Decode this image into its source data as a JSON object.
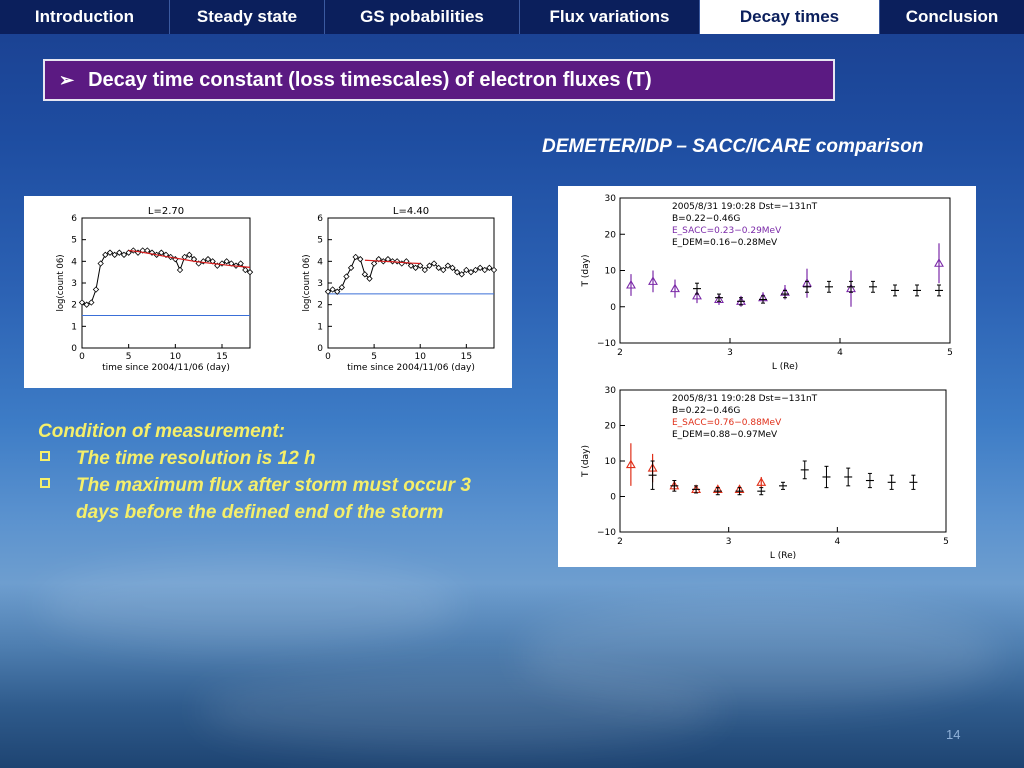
{
  "nav": {
    "tabs": [
      {
        "label": "Introduction"
      },
      {
        "label": "Steady state"
      },
      {
        "label": "GS pobabilities"
      },
      {
        "label": "Flux variations"
      },
      {
        "label": "Decay times"
      },
      {
        "label": "Conclusion"
      }
    ],
    "active_tab": "Decay times"
  },
  "slide": {
    "title": "Decay time constant (loss timescales)  of electron fluxes (T)",
    "subtitle": "DEMETER/IDP – SACC/ICARE comparison",
    "conditions_heading": "Condition of measurement:",
    "conditions": [
      "The time resolution is 12 h",
      "The maximum flux after storm must occur 3 days before the defined end of the storm"
    ],
    "page_number": "14"
  },
  "colors": {
    "nav_bg": "#0b1f5c",
    "title_bg": "#5b1a82",
    "conditions_text": "#f5ef6a",
    "sacc_low": "#7b2aa8",
    "sacc_high": "#e0301a",
    "dem": "#000000",
    "fit_line": "#d81c1c",
    "baseline": "#3a6fd8"
  },
  "chart_data": [
    {
      "type": "line",
      "title": "L=2.70",
      "xlabel": "time since 2004/11/06 (day)",
      "ylabel": "log(count 06)",
      "xlim": [
        0,
        18
      ],
      "ylim": [
        0,
        6
      ],
      "xticks": [
        0,
        5,
        10,
        15
      ],
      "yticks": [
        0,
        1,
        2,
        3,
        4,
        5,
        6
      ],
      "series": [
        {
          "x": [
            0,
            0.5,
            1,
            1.5,
            2,
            2.5,
            3,
            3.5,
            4,
            4.5,
            5,
            5.5,
            6,
            6.5,
            7,
            7.5,
            8,
            8.5,
            9,
            9.5,
            10,
            10.5,
            11,
            11.5,
            12,
            12.5,
            13,
            13.5,
            14,
            14.5,
            15,
            15.5,
            16,
            16.5,
            17,
            17.5,
            18
          ],
          "y": [
            2.1,
            2,
            2.1,
            2.7,
            3.9,
            4.3,
            4.4,
            4.3,
            4.4,
            4.3,
            4.4,
            4.5,
            4.4,
            4.5,
            4.5,
            4.4,
            4.3,
            4.4,
            4.3,
            4.2,
            4.1,
            3.6,
            4.2,
            4.3,
            4.1,
            3.9,
            4,
            4.1,
            4,
            3.8,
            3.9,
            4,
            3.9,
            3.8,
            3.9,
            3.6,
            3.5
          ]
        },
        {
          "x": [
            5,
            6,
            7,
            8,
            9,
            10,
            11,
            12,
            13,
            14,
            15,
            16,
            17,
            18
          ],
          "y": [
            4.5,
            4.45,
            4.38,
            4.3,
            4.22,
            4.15,
            4.08,
            4.0,
            3.95,
            3.9,
            3.85,
            3.8,
            3.76,
            3.72
          ]
        },
        {
          "x": [
            0,
            18
          ],
          "y": [
            1.5,
            1.5
          ]
        }
      ]
    },
    {
      "type": "line",
      "title": "L=4.40",
      "xlabel": "time since 2004/11/06 (day)",
      "ylabel": "log(count 06)",
      "xlim": [
        0,
        18
      ],
      "ylim": [
        0,
        6
      ],
      "xticks": [
        0,
        5,
        10,
        15
      ],
      "yticks": [
        0,
        1,
        2,
        3,
        4,
        5,
        6
      ],
      "series": [
        {
          "x": [
            0,
            0.5,
            1,
            1.5,
            2,
            2.5,
            3,
            3.5,
            4,
            4.5,
            5,
            5.5,
            6,
            6.5,
            7,
            7.5,
            8,
            8.5,
            9,
            9.5,
            10,
            10.5,
            11,
            11.5,
            12,
            12.5,
            13,
            13.5,
            14,
            14.5,
            15,
            15.5,
            16,
            16.5,
            17,
            17.5,
            18
          ],
          "y": [
            2.6,
            2.7,
            2.6,
            2.8,
            3.3,
            3.7,
            4.2,
            4.1,
            3.4,
            3.2,
            3.9,
            4.1,
            4,
            4.1,
            4,
            4,
            3.9,
            4,
            3.8,
            3.7,
            3.8,
            3.6,
            3.8,
            3.9,
            3.7,
            3.6,
            3.8,
            3.7,
            3.5,
            3.4,
            3.6,
            3.5,
            3.6,
            3.7,
            3.6,
            3.7,
            3.6
          ]
        },
        {
          "x": [
            4,
            5,
            6,
            7,
            8,
            9,
            10
          ],
          "y": [
            4.05,
            4.03,
            4.0,
            3.98,
            3.95,
            3.92,
            3.9
          ]
        },
        {
          "x": [
            0,
            18
          ],
          "y": [
            2.5,
            2.5
          ]
        }
      ]
    },
    {
      "type": "scatter",
      "xlabel": "L (Re)",
      "ylabel": "T (day)",
      "xlim": [
        2,
        5
      ],
      "ylim": [
        -10,
        30
      ],
      "xticks": [
        2,
        3,
        4,
        5
      ],
      "yticks": [
        -10,
        0,
        10,
        20,
        30
      ],
      "annotations": [
        "2005/8/31  19:0:28   Dst=−131nT",
        "B=0.22−0.46G",
        "E_SACC=0.23−0.29MeV",
        "E_DEM=0.16−0.28MeV"
      ],
      "series": [
        {
          "marker": "triangle",
          "x": [
            2.1,
            2.3,
            2.5,
            2.7,
            2.9,
            3.1,
            3.3,
            3.5,
            3.7,
            4.1,
            4.9
          ],
          "y": [
            6,
            7,
            5,
            3,
            2,
            1.5,
            2.5,
            4,
            6.5,
            5,
            12
          ],
          "err": [
            3,
            3,
            2.5,
            2,
            1.5,
            1.5,
            1.5,
            2,
            4,
            5,
            5.5
          ]
        },
        {
          "marker": "plus",
          "x": [
            2.7,
            2.9,
            3.1,
            3.3,
            3.5,
            3.7,
            3.9,
            4.1,
            4.3,
            4.5,
            4.7,
            4.9
          ],
          "y": [
            5,
            2.5,
            1.5,
            2,
            3.5,
            5.5,
            5.5,
            5.5,
            5.5,
            4.5,
            4.5,
            4.5
          ],
          "err": [
            1.5,
            1,
            1,
            1,
            1,
            1.5,
            1.5,
            1.5,
            1.5,
            1.5,
            1.5,
            1.5
          ]
        }
      ]
    },
    {
      "type": "scatter",
      "xlabel": "L (Re)",
      "ylabel": "T (day)",
      "xlim": [
        2,
        5
      ],
      "ylim": [
        -10,
        30
      ],
      "xticks": [
        2,
        3,
        4,
        5
      ],
      "yticks": [
        -10,
        0,
        10,
        20,
        30
      ],
      "annotations": [
        "2005/8/31  19:0:28   Dst=−131nT",
        "B=0.22−0.46G",
        "E_SACC=0.76−0.88MeV",
        "E_DEM=0.88−0.97MeV"
      ],
      "series": [
        {
          "marker": "triangle",
          "x": [
            2.1,
            2.3,
            2.5,
            2.7,
            2.9,
            3.1,
            3.3
          ],
          "y": [
            9,
            8,
            3,
            2,
            2,
            2,
            4
          ],
          "err": [
            6,
            4,
            1.5,
            1,
            1,
            1,
            1.5
          ]
        },
        {
          "marker": "plus",
          "x": [
            2.3,
            2.5,
            2.7,
            2.9,
            3.1,
            3.3,
            3.5,
            3.7,
            3.9,
            4.1,
            4.3,
            4.5,
            4.7
          ],
          "y": [
            6,
            3,
            2,
            1.5,
            1.5,
            1.5,
            3,
            7.5,
            5.5,
            5.5,
            4.5,
            4,
            4
          ],
          "err": [
            4,
            1.5,
            1,
            1,
            1,
            1,
            1,
            2.5,
            3,
            2.5,
            2,
            2,
            2
          ]
        }
      ]
    }
  ]
}
